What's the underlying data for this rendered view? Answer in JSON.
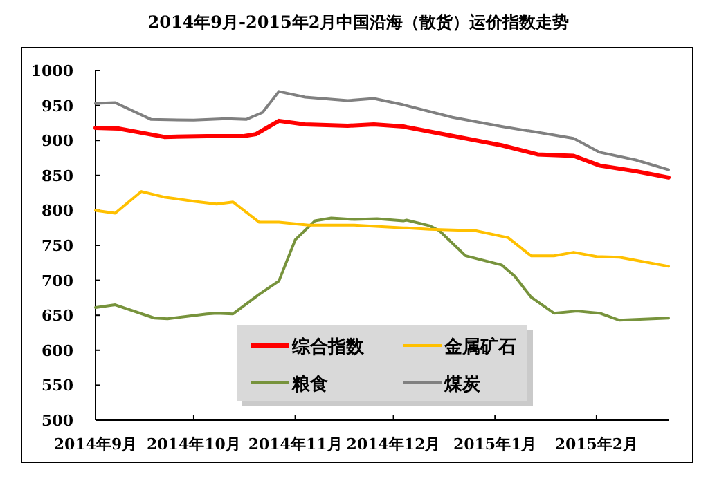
{
  "chart_data": {
    "type": "line",
    "title": "2014年9月-2015年2月中国沿海（散货）运价指数走势",
    "legend": "bottom",
    "xlim": [
      "2014-09-01",
      "2015-02-23"
    ],
    "xticks": [
      {
        "value": "2014-09-01",
        "label": "2014年9月"
      },
      {
        "value": "2014-10-01",
        "label": "2014年10月"
      },
      {
        "value": "2014-11-01",
        "label": "2014年11月"
      },
      {
        "value": "2014-12-01",
        "label": "2014年12月"
      },
      {
        "value": "2015-01-01",
        "label": "2015年1月"
      },
      {
        "value": "2015-02-01",
        "label": "2015年2月"
      }
    ],
    "ylim": [
      500,
      1000
    ],
    "yticks": [
      500,
      550,
      600,
      650,
      700,
      750,
      800,
      850,
      900,
      950,
      1000
    ],
    "series": [
      {
        "name": "综合指数",
        "color": "#ff0000",
        "x": [
          "2014-09-01",
          "2014-09-08",
          "2014-09-22",
          "2014-10-05",
          "2014-10-16",
          "2014-10-20",
          "2014-10-27",
          "2014-11-04",
          "2014-11-17",
          "2014-11-25",
          "2014-12-04",
          "2014-12-05",
          "2015-01-03",
          "2015-01-14",
          "2015-01-25",
          "2015-02-02",
          "2015-02-13",
          "2015-02-23"
        ],
        "values": [
          918,
          917,
          905,
          906,
          906,
          909,
          928,
          923,
          921,
          923,
          920,
          919,
          893,
          880,
          878,
          864,
          856,
          847
        ]
      },
      {
        "name": "金属矿石",
        "color": "#ffc000",
        "x": [
          "2014-09-01",
          "2014-09-07",
          "2014-09-15",
          "2014-09-22",
          "2014-10-01",
          "2014-10-08",
          "2014-10-13",
          "2014-10-21",
          "2014-10-27",
          "2014-11-05",
          "2014-11-19",
          "2014-12-04",
          "2014-12-05",
          "2014-12-12",
          "2014-12-26",
          "2015-01-05",
          "2015-01-12",
          "2015-01-19",
          "2015-01-25",
          "2015-02-01",
          "2015-02-08",
          "2015-02-23"
        ],
        "values": [
          800,
          796,
          827,
          819,
          813,
          809,
          812,
          783,
          783,
          779,
          779,
          775,
          775,
          773,
          771,
          761,
          735,
          735,
          740,
          734,
          733,
          720
        ]
      },
      {
        "name": "粮食",
        "color": "#77933c",
        "x": [
          "2014-09-01",
          "2014-09-07",
          "2014-09-19",
          "2014-09-23",
          "2014-10-05",
          "2014-10-08",
          "2014-10-13",
          "2014-10-21",
          "2014-10-27",
          "2014-11-01",
          "2014-11-07",
          "2014-11-12",
          "2014-11-19",
          "2014-11-26",
          "2014-12-04",
          "2014-12-05",
          "2014-12-12",
          "2014-12-15",
          "2014-12-23",
          "2015-01-03",
          "2015-01-07",
          "2015-01-12",
          "2015-01-19",
          "2015-01-26",
          "2015-02-02",
          "2015-02-08",
          "2015-02-23"
        ],
        "values": [
          661,
          665,
          646,
          645,
          652,
          653,
          652,
          680,
          699,
          758,
          785,
          789,
          787,
          788,
          785,
          786,
          778,
          771,
          735,
          722,
          706,
          676,
          653,
          656,
          653,
          643,
          646
        ]
      },
      {
        "name": "煤炭",
        "color": "#808080",
        "x": [
          "2014-09-01",
          "2014-09-07",
          "2014-09-18",
          "2014-10-01",
          "2014-10-11",
          "2014-10-17",
          "2014-10-22",
          "2014-10-27",
          "2014-11-04",
          "2014-11-17",
          "2014-11-25",
          "2014-12-04",
          "2014-12-19",
          "2015-01-03",
          "2015-01-16",
          "2015-01-25",
          "2015-02-02",
          "2015-02-13",
          "2015-02-23"
        ],
        "values": [
          953,
          954,
          930,
          929,
          931,
          930,
          940,
          970,
          962,
          957,
          960,
          951,
          933,
          920,
          910,
          903,
          883,
          872,
          858
        ]
      }
    ]
  }
}
